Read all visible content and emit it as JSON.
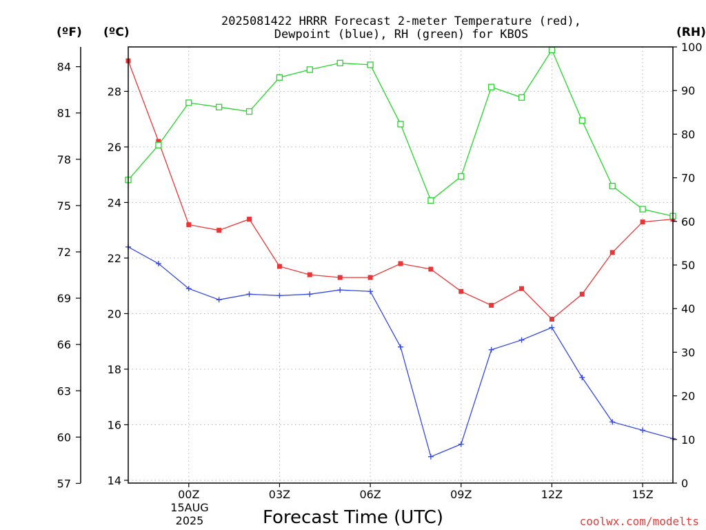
{
  "title": {
    "line1": "2025081422 HRRR Forecast 2-meter Temperature (red),",
    "line2": "Dewpoint (blue), RH (green) for KBOS"
  },
  "units": {
    "fahrenheit": "(ºF)",
    "celsius": "(ºC)",
    "rh": "(RH)"
  },
  "xlabel": "Forecast Time (UTC)",
  "credit": "coolwx.com/modelts",
  "date_label": {
    "day": "15AUG",
    "year": "2025"
  },
  "colors": {
    "temperature": "#e83535",
    "dewpoint": "#3448e0",
    "rh": "#25d42a",
    "grid": "#b0b0b0",
    "credit": "#e03a3a"
  },
  "chart_data": {
    "type": "line",
    "x": [
      -2,
      -1,
      0,
      1,
      2,
      3,
      4,
      5,
      6,
      7,
      8,
      9,
      10,
      11,
      12,
      13,
      14,
      15,
      16
    ],
    "x_tick_positions": [
      0,
      3,
      6,
      9,
      12,
      15
    ],
    "x_tick_labels": [
      "00Z",
      "03Z",
      "06Z",
      "09Z",
      "12Z",
      "15Z"
    ],
    "xlim": [
      -2,
      16
    ],
    "grid": true,
    "axes": {
      "celsius": {
        "range": [
          14,
          28
        ],
        "ticks": [
          14,
          16,
          18,
          20,
          22,
          24,
          26,
          28
        ],
        "lim": [
          13.9,
          29.6
        ]
      },
      "fahrenheit": {
        "ticks": [
          57,
          60,
          63,
          66,
          69,
          72,
          75,
          78,
          81,
          84
        ]
      },
      "rh": {
        "range": [
          0,
          100
        ],
        "ticks": [
          0,
          10,
          20,
          30,
          40,
          50,
          60,
          70,
          80,
          90,
          100
        ]
      }
    },
    "series": [
      {
        "name": "Temperature",
        "unit": "C",
        "values": [
          29.1,
          26.2,
          23.2,
          23.0,
          23.4,
          21.7,
          21.4,
          21.3,
          21.3,
          21.8,
          21.6,
          20.8,
          20.3,
          20.9,
          19.8,
          20.7,
          22.2,
          23.3,
          23.4
        ]
      },
      {
        "name": "Dewpoint",
        "unit": "C",
        "values": [
          22.4,
          21.8,
          20.9,
          20.5,
          20.7,
          20.65,
          20.7,
          20.85,
          20.8,
          18.8,
          14.85,
          15.3,
          18.7,
          19.05,
          19.5,
          17.7,
          16.1,
          15.8,
          15.5
        ]
      },
      {
        "name": "RH",
        "unit": "%",
        "values": [
          69.5,
          77.5,
          87.2,
          86.2,
          85.2,
          93.0,
          94.8,
          96.3,
          95.9,
          82.3,
          64.8,
          70.3,
          90.8,
          88.4,
          99.3,
          83.1,
          68.1,
          62.8,
          61.2
        ]
      }
    ]
  }
}
